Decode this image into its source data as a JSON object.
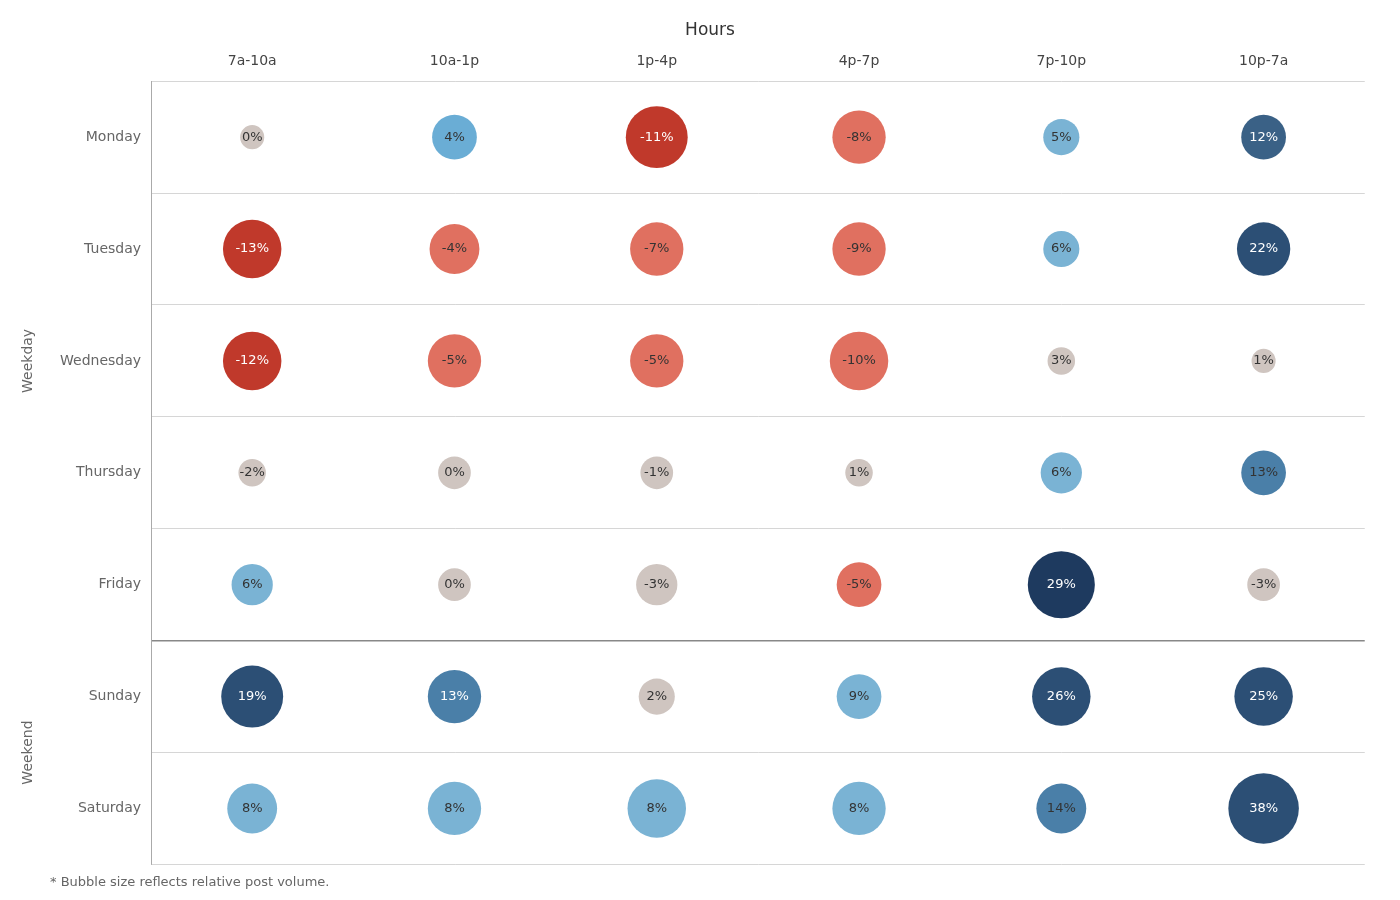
{
  "chart_data": {
    "type": "bubble",
    "title": "Hours",
    "footnote": "* Bubble size reflects relative post volume.",
    "x_categories": [
      "7a-10a",
      "10a-1p",
      "1p-4p",
      "4p-7p",
      "7p-10p",
      "10p-7a"
    ],
    "y_categories": [
      "Monday",
      "Tuesday",
      "Wednesday",
      "Thursday",
      "Friday",
      "Sunday",
      "Saturday"
    ],
    "row_groups": [
      {
        "label": "Weekday",
        "categories": [
          "Monday",
          "Tuesday",
          "Wednesday",
          "Thursday",
          "Friday"
        ]
      },
      {
        "label": "Weekend",
        "categories": [
          "Sunday",
          "Saturday"
        ]
      }
    ],
    "values": [
      [
        0,
        4,
        -11,
        -8,
        5,
        12
      ],
      [
        -13,
        -4,
        -7,
        -9,
        6,
        22
      ],
      [
        -12,
        -5,
        -5,
        -10,
        3,
        1
      ],
      [
        -2,
        0,
        -1,
        1,
        6,
        13
      ],
      [
        6,
        0,
        -3,
        -5,
        29,
        -3
      ],
      [
        19,
        13,
        2,
        9,
        26,
        25
      ],
      [
        8,
        8,
        8,
        8,
        14,
        38
      ]
    ],
    "value_labels": [
      [
        "0%",
        "4%",
        "-11%",
        "-8%",
        "5%",
        "12%"
      ],
      [
        "-13%",
        "-4%",
        "-7%",
        "-9%",
        "6%",
        "22%"
      ],
      [
        "-12%",
        "-5%",
        "-5%",
        "-10%",
        "3%",
        "1%"
      ],
      [
        "-2%",
        "0%",
        "-1%",
        "1%",
        "6%",
        "13%"
      ],
      [
        "6%",
        "0%",
        "-3%",
        "-5%",
        "29%",
        "-3%"
      ],
      [
        "19%",
        "13%",
        "2%",
        "9%",
        "26%",
        "25%"
      ],
      [
        "8%",
        "8%",
        "8%",
        "8%",
        "14%",
        "38%"
      ]
    ],
    "sizes": [
      [
        28,
        52,
        72,
        62,
        42,
        52
      ],
      [
        68,
        58,
        62,
        62,
        42,
        62
      ],
      [
        68,
        62,
        62,
        68,
        32,
        28
      ],
      [
        32,
        38,
        38,
        32,
        48,
        52
      ],
      [
        48,
        38,
        48,
        52,
        78,
        38
      ],
      [
        72,
        62,
        42,
        52,
        68,
        68
      ],
      [
        58,
        62,
        68,
        62,
        58,
        82
      ]
    ],
    "colors": [
      [
        "#cfc5c0",
        "#6aadd5",
        "#c0392b",
        "#e07060",
        "#7ab3d4",
        "#3a6186"
      ],
      [
        "#c0392b",
        "#e07060",
        "#e07060",
        "#e07060",
        "#7ab3d4",
        "#2c4f75"
      ],
      [
        "#c0392b",
        "#e07060",
        "#e07060",
        "#e07060",
        "#cfc5c0",
        "#cfc5c0"
      ],
      [
        "#cfc5c0",
        "#cfc5c0",
        "#cfc5c0",
        "#cfc5c0",
        "#7ab3d4",
        "#4a7fa8"
      ],
      [
        "#7ab3d4",
        "#cfc5c0",
        "#cfc5c0",
        "#e07060",
        "#1e3a5f",
        "#cfc5c0"
      ],
      [
        "#2c4f75",
        "#4a7fa8",
        "#cfc5c0",
        "#7ab3d4",
        "#2c4f75",
        "#2c4f75"
      ],
      [
        "#7ab3d4",
        "#7ab3d4",
        "#7ab3d4",
        "#7ab3d4",
        "#4a7fa8",
        "#2c4f75"
      ]
    ],
    "label_colors": [
      [
        "#333333",
        "#333333",
        "#ffffff",
        "#333333",
        "#333333",
        "#ffffff"
      ],
      [
        "#ffffff",
        "#333333",
        "#333333",
        "#333333",
        "#333333",
        "#ffffff"
      ],
      [
        "#ffffff",
        "#333333",
        "#333333",
        "#333333",
        "#333333",
        "#333333"
      ],
      [
        "#333333",
        "#333333",
        "#333333",
        "#333333",
        "#333333",
        "#333333"
      ],
      [
        "#333333",
        "#333333",
        "#333333",
        "#333333",
        "#ffffff",
        "#333333"
      ],
      [
        "#ffffff",
        "#ffffff",
        "#333333",
        "#333333",
        "#ffffff",
        "#ffffff"
      ],
      [
        "#333333",
        "#333333",
        "#333333",
        "#333333",
        "#333333",
        "#ffffff"
      ]
    ],
    "data_labels": true,
    "grid": true
  }
}
